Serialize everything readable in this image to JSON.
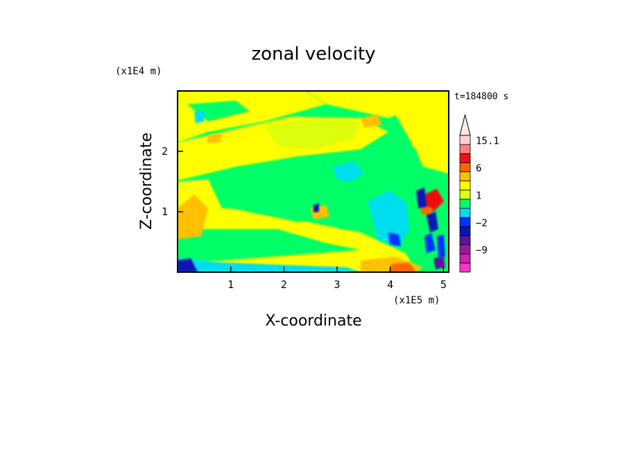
{
  "chart_data": {
    "type": "heatmap",
    "title": "zonal velocity",
    "xlabel": "X-coordinate",
    "ylabel": "Z-coordinate",
    "x_unit": "(x1E5 m)",
    "y_unit": "(x1E4 m)",
    "time_label": "t=184800 s",
    "xlim": [
      0,
      5.1
    ],
    "ylim": [
      0,
      3.0
    ],
    "x_ticks": [
      1,
      2,
      3,
      4,
      5
    ],
    "y_ticks": [
      1,
      2
    ],
    "colorbar": {
      "levels": [
        -15,
        -12,
        -9,
        -6,
        -3,
        -2,
        -1,
        0,
        1,
        2,
        3,
        6,
        9,
        12,
        15.1
      ],
      "colors": [
        "#ff33cc",
        "#cc22aa",
        "#991a99",
        "#5a14a0",
        "#0a14b4",
        "#0033ff",
        "#00ddee",
        "#00ff66",
        "#ddff11",
        "#ffff00",
        "#ffc000",
        "#ff6600",
        "#ee1111",
        "#ff8080",
        "#ffd0d0"
      ],
      "labels": [
        {
          "value": 15.1,
          "text": "15.1"
        },
        {
          "value": 6,
          "text": "6"
        },
        {
          "value": 1,
          "text": "1"
        },
        {
          "value": -2,
          "text": "−2"
        },
        {
          "value": -9,
          "text": "−9"
        }
      ],
      "max_arrow": true
    }
  }
}
